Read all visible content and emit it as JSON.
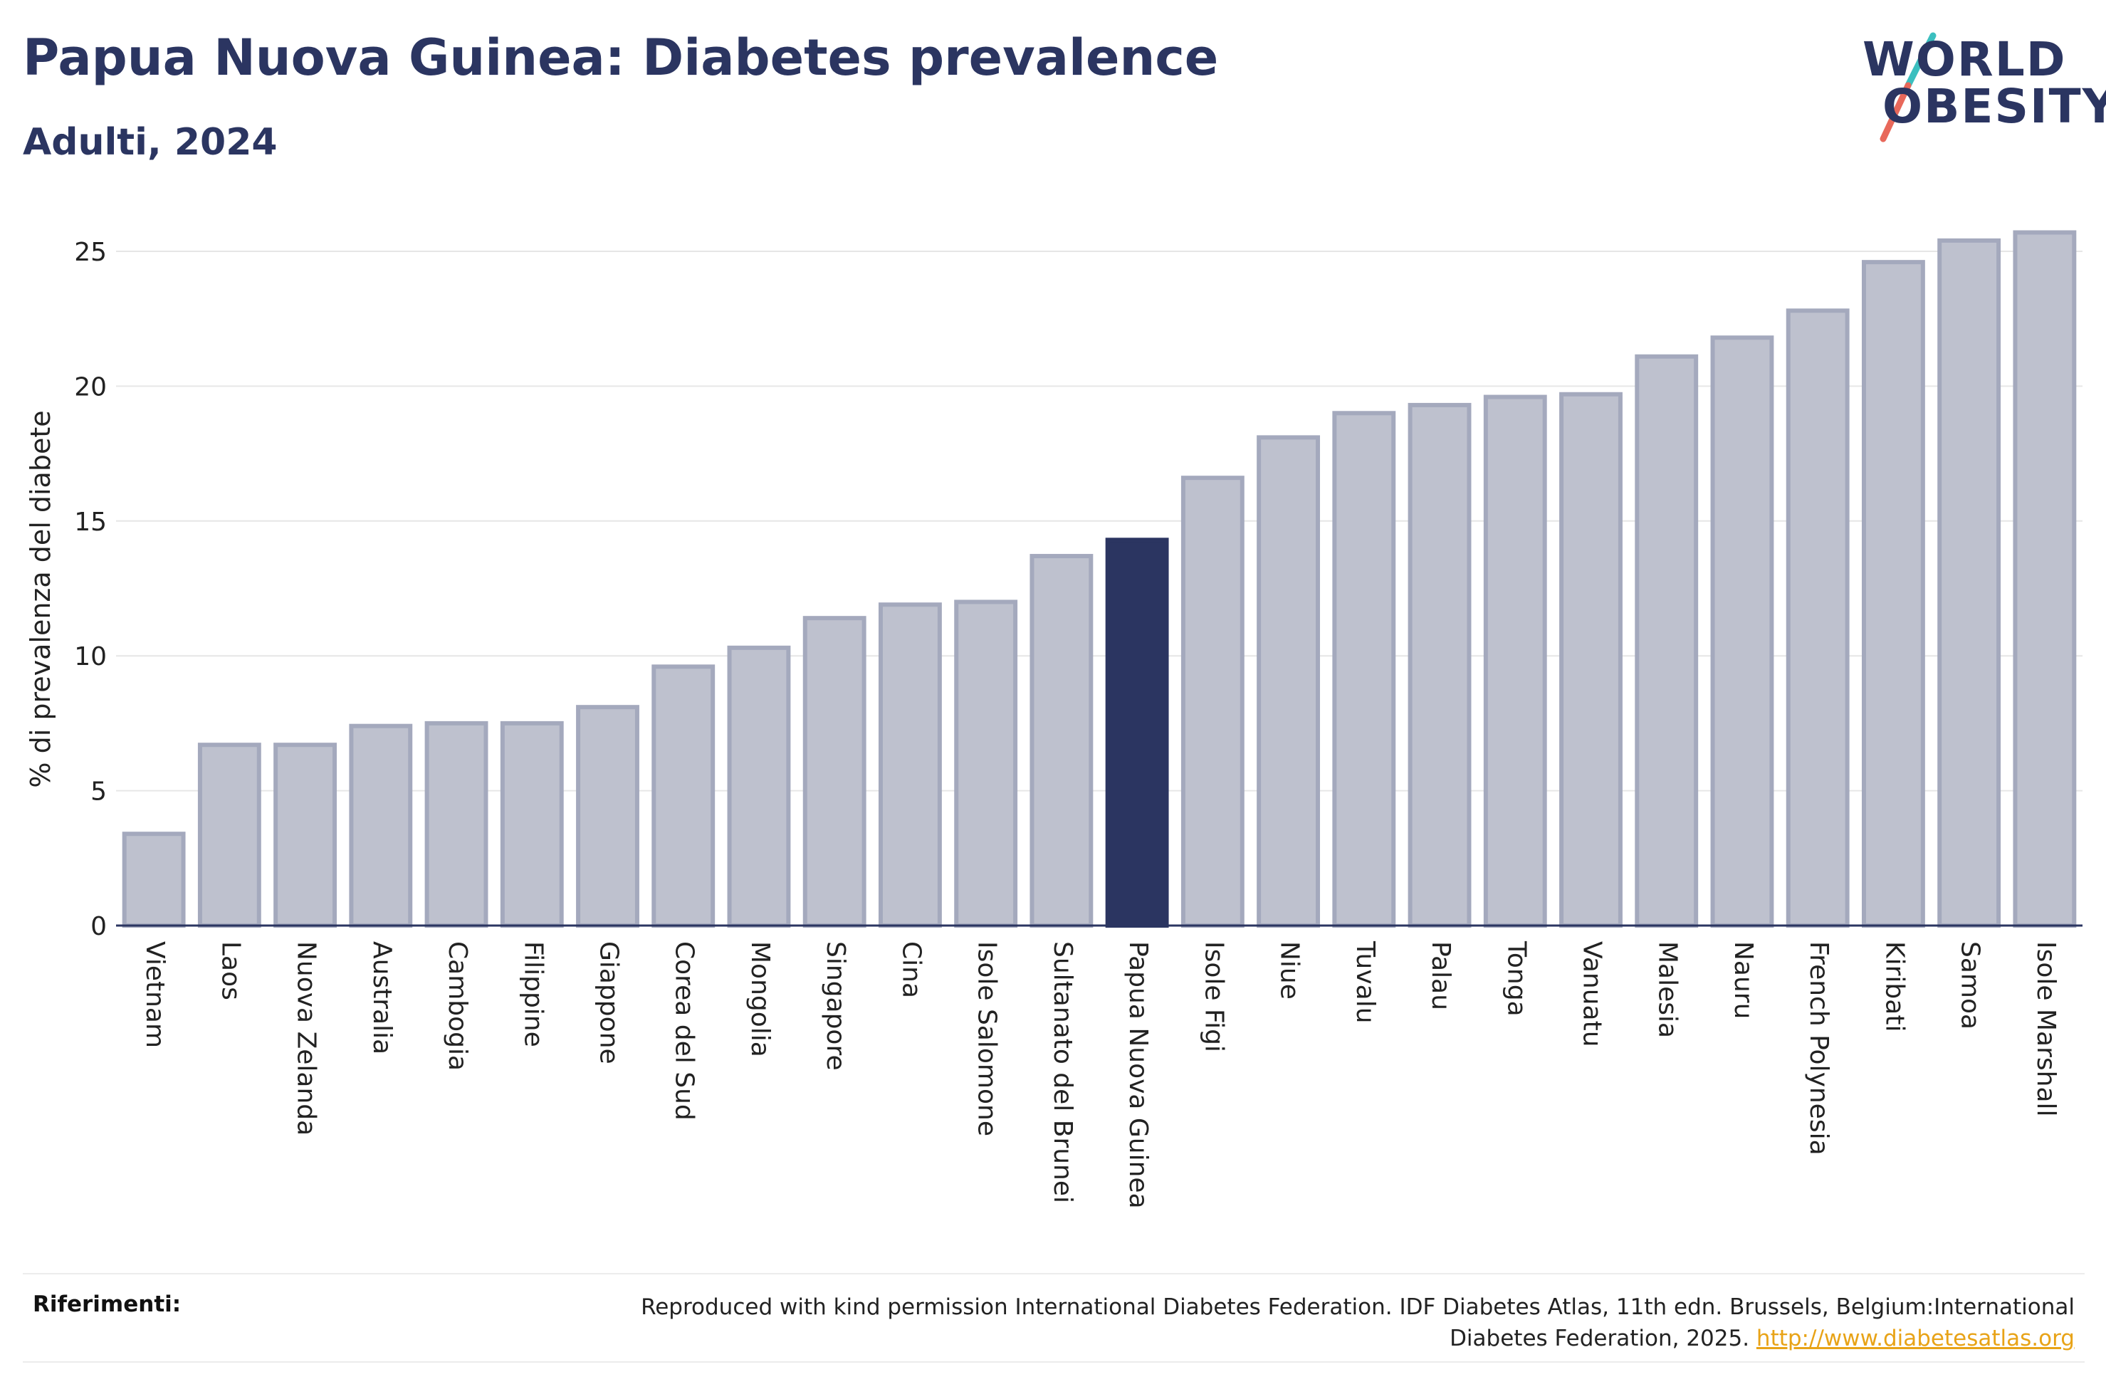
{
  "header": {
    "title": "Papua Nuova Guinea: Diabetes prevalence",
    "subtitle": "Adulti, 2024"
  },
  "logo": {
    "line1": "WORLD",
    "line2": "OBESITY",
    "colors": {
      "text": "#2b3561",
      "slash_top": "#3bbfbf",
      "slash_bottom": "#e8685a"
    }
  },
  "chart_data": {
    "type": "bar",
    "ylabel": "% di prevalenza del diabete",
    "ylim": [
      0,
      26
    ],
    "yticks": [
      0,
      5,
      10,
      15,
      20,
      25
    ],
    "grid": true,
    "categories": [
      "Vietnam",
      "Laos",
      "Nuova Zelanda",
      "Australia",
      "Cambogia",
      "Filippine",
      "Giappone",
      "Corea del Sud",
      "Mongolia",
      "Singapore",
      "Cina",
      "Isole Salomone",
      "Sultanato del Brunei",
      "Papua Nuova Guinea",
      "Isole Figi",
      "Niue",
      "Tuvalu",
      "Palau",
      "Tonga",
      "Vanuatu",
      "Malesia",
      "Nauru",
      "French Polynesia",
      "Kiribati",
      "Samoa",
      "Isole Marshall"
    ],
    "values": [
      3.4,
      6.7,
      6.7,
      7.4,
      7.5,
      7.5,
      8.1,
      9.6,
      10.3,
      11.4,
      11.9,
      12.0,
      13.7,
      14.3,
      16.6,
      18.1,
      19.0,
      19.3,
      19.6,
      19.7,
      21.1,
      21.8,
      22.8,
      24.6,
      25.4,
      25.7
    ],
    "highlight": "Papua Nuova Guinea",
    "colors": {
      "bar": "#bec1ce",
      "bar_border": "#a4a9bd",
      "highlight": "#2b3561"
    }
  },
  "references": {
    "label": "Riferimenti:",
    "text": "Reproduced with kind permission International Diabetes Federation. IDF Diabetes Atlas, 11th edn. Brussels, Belgium:International Diabetes Federation, 2025.",
    "link": "http://www.diabetesatlas.org"
  }
}
